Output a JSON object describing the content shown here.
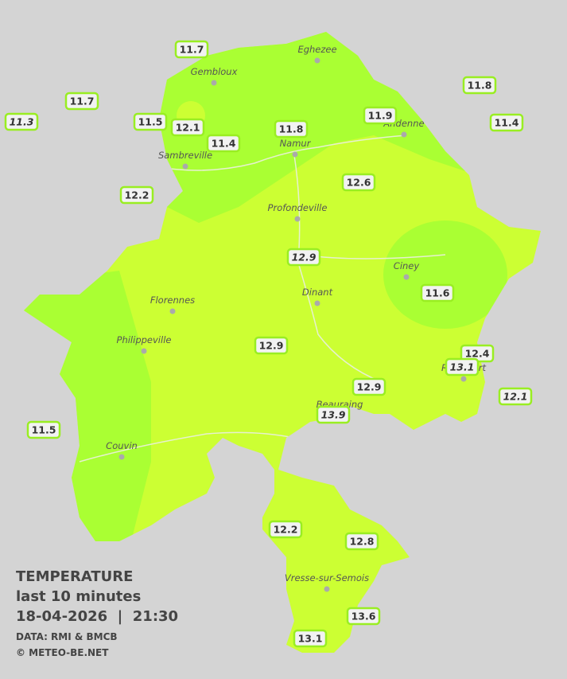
{
  "legend": {
    "title": "TEMPERATURE",
    "subtitle": "last 10 minutes",
    "datetime": "18-04-2026  |  21:30",
    "source": "DATA: RMI & BMCB",
    "credit": "© METEO-BE.NET"
  },
  "cities": [
    "Eghezee",
    "Gembloux",
    "Andenne",
    "Namur",
    "Sambreville",
    "Profondeville",
    "Ciney",
    "Florennes",
    "Dinant",
    "Philippeville",
    "Rochefort",
    "Beauraing",
    "Couvin",
    "Vresse-sur-Semois"
  ],
  "stations": [
    11.7,
    11.8,
    11.7,
    11.3,
    11.5,
    12.1,
    11.9,
    11.4,
    11.8,
    11.4,
    12.6,
    12.2,
    12.9,
    11.6,
    12.9,
    12.4,
    13.1,
    12.1,
    12.9,
    13.9,
    11.5,
    12.2,
    12.8,
    13.6,
    13.1
  ]
}
